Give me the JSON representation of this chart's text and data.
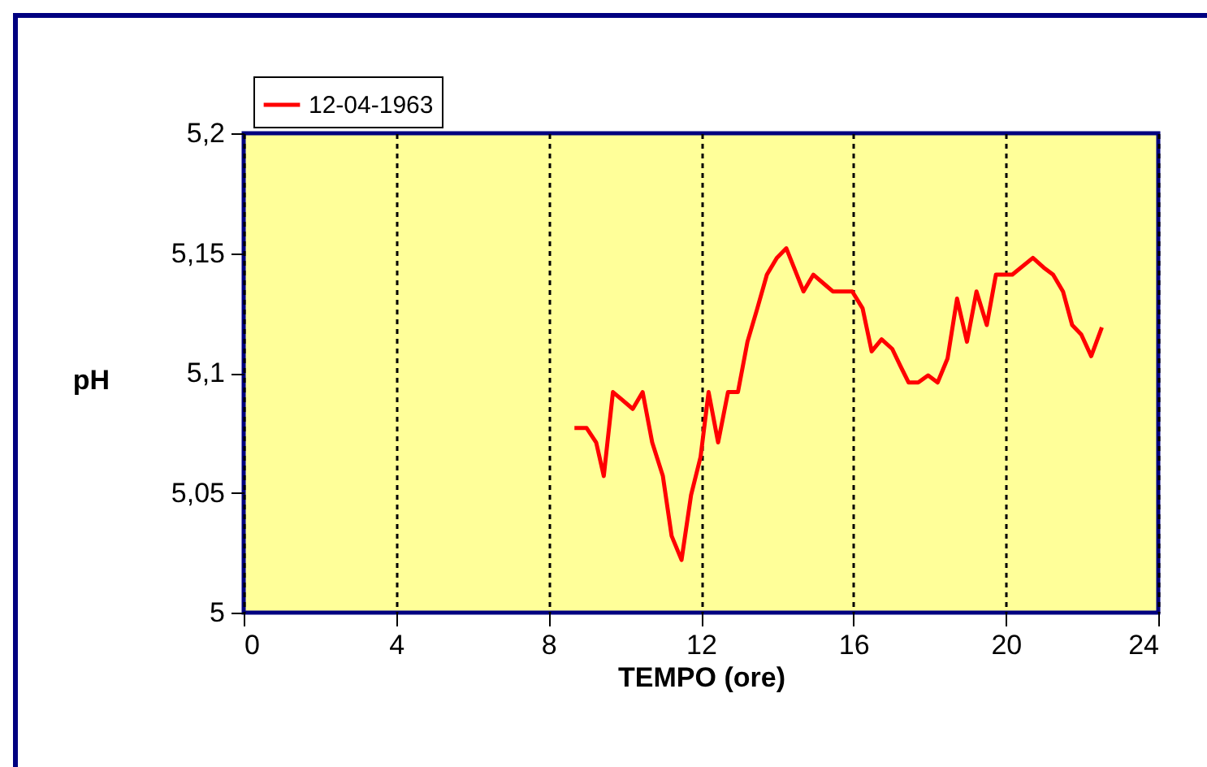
{
  "chart_data": {
    "type": "line",
    "xlabel": "TEMPO (ore)",
    "ylabel": "pH",
    "x": [
      8.68,
      9.0,
      9.25,
      9.45,
      9.69,
      10.21,
      10.47,
      10.72,
      11.0,
      11.23,
      11.49,
      11.74,
      11.99,
      12.2,
      12.45,
      12.71,
      12.97,
      13.22,
      13.48,
      13.73,
      13.99,
      14.24,
      14.69,
      14.95,
      15.46,
      15.97,
      16.24,
      16.48,
      16.74,
      17.02,
      17.23,
      17.45,
      17.7,
      17.96,
      18.21,
      18.47,
      18.72,
      18.98,
      19.23,
      19.5,
      19.74,
      20.17,
      20.71,
      20.99,
      21.24,
      21.5,
      21.74,
      21.98,
      22.24,
      22.52
    ],
    "series": [
      {
        "name": "12-04-1963",
        "color": "#ff0000",
        "values": [
          5.077,
          5.077,
          5.071,
          5.057,
          5.092,
          5.085,
          5.092,
          5.071,
          5.057,
          5.032,
          5.022,
          5.049,
          5.065,
          5.092,
          5.071,
          5.092,
          5.092,
          5.113,
          5.127,
          5.141,
          5.148,
          5.152,
          5.134,
          5.141,
          5.134,
          5.134,
          5.127,
          5.109,
          5.114,
          5.11,
          5.103,
          5.096,
          5.096,
          5.099,
          5.096,
          5.106,
          5.131,
          5.113,
          5.134,
          5.12,
          5.141,
          5.141,
          5.148,
          5.144,
          5.141,
          5.134,
          5.12,
          5.116,
          5.107,
          5.119
        ]
      }
    ],
    "xlim": [
      0,
      24
    ],
    "xticks": [
      0,
      4,
      8,
      12,
      16,
      20,
      24
    ],
    "ylim": [
      5,
      5.2
    ],
    "yticks": [
      {
        "value": 5,
        "label": "5"
      },
      {
        "value": 5.05,
        "label": "5,05"
      },
      {
        "value": 5.1,
        "label": "5,1"
      },
      {
        "value": 5.15,
        "label": "5,15"
      },
      {
        "value": 5.2,
        "label": "5,2"
      }
    ],
    "grid": "x",
    "legend": "top left",
    "marker": "none",
    "line_style": "solid"
  }
}
